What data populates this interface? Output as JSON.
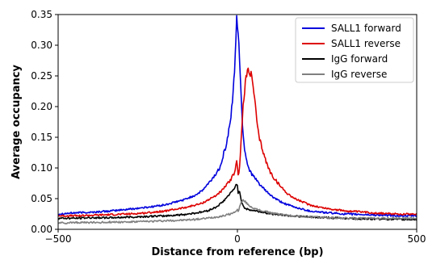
{
  "chart_data": {
    "type": "line",
    "xlabel": "Distance from reference (bp)",
    "ylabel": "Average occupancy",
    "xlim": [
      -500,
      500
    ],
    "ylim": [
      0,
      0.35
    ],
    "xticks": [
      -500,
      0,
      500
    ],
    "yticks": [
      0.0,
      0.05,
      0.1,
      0.15,
      0.2,
      0.25,
      0.3,
      0.35
    ],
    "xtick_labels": [
      "−500",
      "0",
      "500"
    ],
    "ytick_labels": [
      "0.00",
      "0.05",
      "0.10",
      "0.15",
      "0.20",
      "0.25",
      "0.30",
      "0.35"
    ],
    "grid": false,
    "legend_position": "top-right",
    "series": [
      {
        "name": "SALL1 forward",
        "color": "#0000dd",
        "points": [
          [
            -500,
            0.025
          ],
          [
            -450,
            0.027
          ],
          [
            -400,
            0.028
          ],
          [
            -350,
            0.03
          ],
          [
            -300,
            0.033
          ],
          [
            -250,
            0.036
          ],
          [
            -200,
            0.04
          ],
          [
            -150,
            0.048
          ],
          [
            -120,
            0.055
          ],
          [
            -100,
            0.062
          ],
          [
            -80,
            0.075
          ],
          [
            -60,
            0.09
          ],
          [
            -50,
            0.1
          ],
          [
            -40,
            0.12
          ],
          [
            -30,
            0.14
          ],
          [
            -20,
            0.175
          ],
          [
            -12,
            0.22
          ],
          [
            -8,
            0.26
          ],
          [
            -5,
            0.3
          ],
          [
            -2,
            0.348
          ],
          [
            0,
            0.335
          ],
          [
            2,
            0.32
          ],
          [
            4,
            0.3
          ],
          [
            6,
            0.27
          ],
          [
            8,
            0.245
          ],
          [
            10,
            0.23
          ],
          [
            12,
            0.2
          ],
          [
            14,
            0.17
          ],
          [
            17,
            0.15
          ],
          [
            20,
            0.13
          ],
          [
            25,
            0.115
          ],
          [
            30,
            0.102
          ],
          [
            40,
            0.09
          ],
          [
            50,
            0.082
          ],
          [
            60,
            0.075
          ],
          [
            70,
            0.068
          ],
          [
            80,
            0.062
          ],
          [
            100,
            0.052
          ],
          [
            120,
            0.045
          ],
          [
            140,
            0.04
          ],
          [
            160,
            0.036
          ],
          [
            200,
            0.03
          ],
          [
            250,
            0.027
          ],
          [
            300,
            0.025
          ],
          [
            350,
            0.024
          ],
          [
            400,
            0.023
          ],
          [
            450,
            0.022
          ],
          [
            500,
            0.022
          ]
        ]
      },
      {
        "name": "SALL1 reverse",
        "color": "#dd0000",
        "points": [
          [
            -500,
            0.022
          ],
          [
            -450,
            0.022
          ],
          [
            -400,
            0.023
          ],
          [
            -350,
            0.024
          ],
          [
            -300,
            0.025
          ],
          [
            -250,
            0.027
          ],
          [
            -200,
            0.03
          ],
          [
            -150,
            0.035
          ],
          [
            -100,
            0.042
          ],
          [
            -60,
            0.055
          ],
          [
            -40,
            0.065
          ],
          [
            -20,
            0.08
          ],
          [
            -10,
            0.09
          ],
          [
            -5,
            0.1
          ],
          [
            -2,
            0.11
          ],
          [
            0,
            0.105
          ],
          [
            2,
            0.09
          ],
          [
            5,
            0.095
          ],
          [
            8,
            0.12
          ],
          [
            12,
            0.16
          ],
          [
            16,
            0.2
          ],
          [
            20,
            0.225
          ],
          [
            24,
            0.245
          ],
          [
            28,
            0.258
          ],
          [
            32,
            0.262
          ],
          [
            36,
            0.255
          ],
          [
            40,
            0.245
          ],
          [
            45,
            0.23
          ],
          [
            50,
            0.2
          ],
          [
            55,
            0.17
          ],
          [
            60,
            0.15
          ],
          [
            70,
            0.13
          ],
          [
            80,
            0.11
          ],
          [
            90,
            0.095
          ],
          [
            100,
            0.085
          ],
          [
            120,
            0.07
          ],
          [
            140,
            0.058
          ],
          [
            160,
            0.05
          ],
          [
            180,
            0.045
          ],
          [
            200,
            0.04
          ],
          [
            230,
            0.036
          ],
          [
            260,
            0.033
          ],
          [
            300,
            0.03
          ],
          [
            350,
            0.028
          ],
          [
            400,
            0.026
          ],
          [
            450,
            0.025
          ],
          [
            500,
            0.025
          ]
        ]
      },
      {
        "name": "IgG forward",
        "color": "#000000",
        "points": [
          [
            -500,
            0.018
          ],
          [
            -450,
            0.018
          ],
          [
            -400,
            0.019
          ],
          [
            -350,
            0.019
          ],
          [
            -300,
            0.02
          ],
          [
            -250,
            0.021
          ],
          [
            -200,
            0.022
          ],
          [
            -150,
            0.024
          ],
          [
            -100,
            0.028
          ],
          [
            -80,
            0.031
          ],
          [
            -60,
            0.036
          ],
          [
            -40,
            0.045
          ],
          [
            -30,
            0.052
          ],
          [
            -20,
            0.058
          ],
          [
            -10,
            0.065
          ],
          [
            -5,
            0.072
          ],
          [
            -2,
            0.075
          ],
          [
            0,
            0.07
          ],
          [
            2,
            0.06
          ],
          [
            5,
            0.062
          ],
          [
            8,
            0.055
          ],
          [
            10,
            0.05
          ],
          [
            12,
            0.045
          ],
          [
            15,
            0.04
          ],
          [
            20,
            0.035
          ],
          [
            30,
            0.032
          ],
          [
            50,
            0.03
          ],
          [
            80,
            0.027
          ],
          [
            100,
            0.025
          ],
          [
            150,
            0.022
          ],
          [
            200,
            0.02
          ],
          [
            250,
            0.019
          ],
          [
            300,
            0.018
          ],
          [
            350,
            0.017
          ],
          [
            400,
            0.017
          ],
          [
            450,
            0.016
          ],
          [
            500,
            0.016
          ]
        ]
      },
      {
        "name": "IgG reverse",
        "color": "#808080",
        "points": [
          [
            -500,
            0.01
          ],
          [
            -450,
            0.011
          ],
          [
            -400,
            0.011
          ],
          [
            -350,
            0.012
          ],
          [
            -300,
            0.012
          ],
          [
            -250,
            0.013
          ],
          [
            -200,
            0.014
          ],
          [
            -150,
            0.015
          ],
          [
            -100,
            0.017
          ],
          [
            -60,
            0.02
          ],
          [
            -40,
            0.022
          ],
          [
            -20,
            0.025
          ],
          [
            -10,
            0.027
          ],
          [
            -5,
            0.03
          ],
          [
            0,
            0.032
          ],
          [
            2,
            0.028
          ],
          [
            5,
            0.035
          ],
          [
            8,
            0.04
          ],
          [
            12,
            0.045
          ],
          [
            16,
            0.047
          ],
          [
            20,
            0.046
          ],
          [
            25,
            0.043
          ],
          [
            30,
            0.04
          ],
          [
            40,
            0.036
          ],
          [
            50,
            0.033
          ],
          [
            70,
            0.03
          ],
          [
            100,
            0.026
          ],
          [
            150,
            0.022
          ],
          [
            200,
            0.02
          ],
          [
            250,
            0.019
          ],
          [
            300,
            0.018
          ],
          [
            350,
            0.018
          ],
          [
            400,
            0.018
          ],
          [
            450,
            0.018
          ],
          [
            500,
            0.018
          ]
        ]
      }
    ]
  }
}
